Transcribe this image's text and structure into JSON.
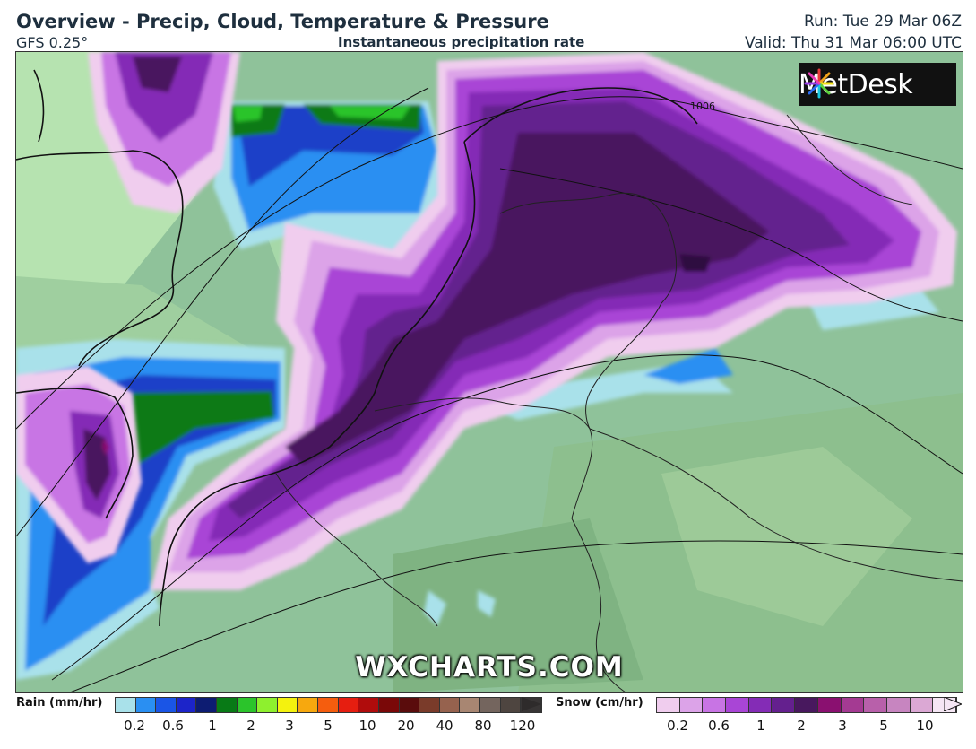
{
  "header": {
    "title": "Overview - Precip, Cloud, Temperature & Pressure",
    "model": "GFS 0.25°",
    "subtitle": "Instantaneous precipitation rate",
    "run": "Run: Tue 29 Mar 06Z",
    "valid": "Valid: Thu 31 Mar 06:00 UTC"
  },
  "logo": {
    "text": "MetDesk",
    "icon": "metdesk-logo-icon"
  },
  "watermark": "WXCHARTS.COM",
  "map": {
    "isobar_label": "1006"
  },
  "legend": {
    "rain": {
      "title": "Rain (mm/hr)",
      "colors": [
        "#a9e1ea",
        "#2a8ff2",
        "#1a55e6",
        "#1c24c9",
        "#0d1c72",
        "#087a16",
        "#2bc42b",
        "#8ef02e",
        "#f4f20e",
        "#f7a80e",
        "#f55d0e",
        "#e61e10",
        "#b00c0c",
        "#7a0808",
        "#5a0c0c",
        "#7a3b2a",
        "#96624e",
        "#a88672",
        "#74655e",
        "#4e4540",
        "#383535"
      ],
      "ticks": [
        "0.2",
        "0.6",
        "1",
        "2",
        "3",
        "5",
        "10",
        "20",
        "40",
        "80",
        "120"
      ]
    },
    "snow": {
      "title": "Snow (cm/hr)",
      "colors": [
        "#f0cdee",
        "#dca3e8",
        "#c874e4",
        "#a945d6",
        "#842cb6",
        "#64208e",
        "#48185e",
        "#8a1070",
        "#a43a92",
        "#b860aa",
        "#c785c0",
        "#dba8d4",
        "#f5e6f4"
      ],
      "ticks": [
        "0.2",
        "0.6",
        "1",
        "2",
        "3",
        "5",
        "10"
      ]
    }
  }
}
